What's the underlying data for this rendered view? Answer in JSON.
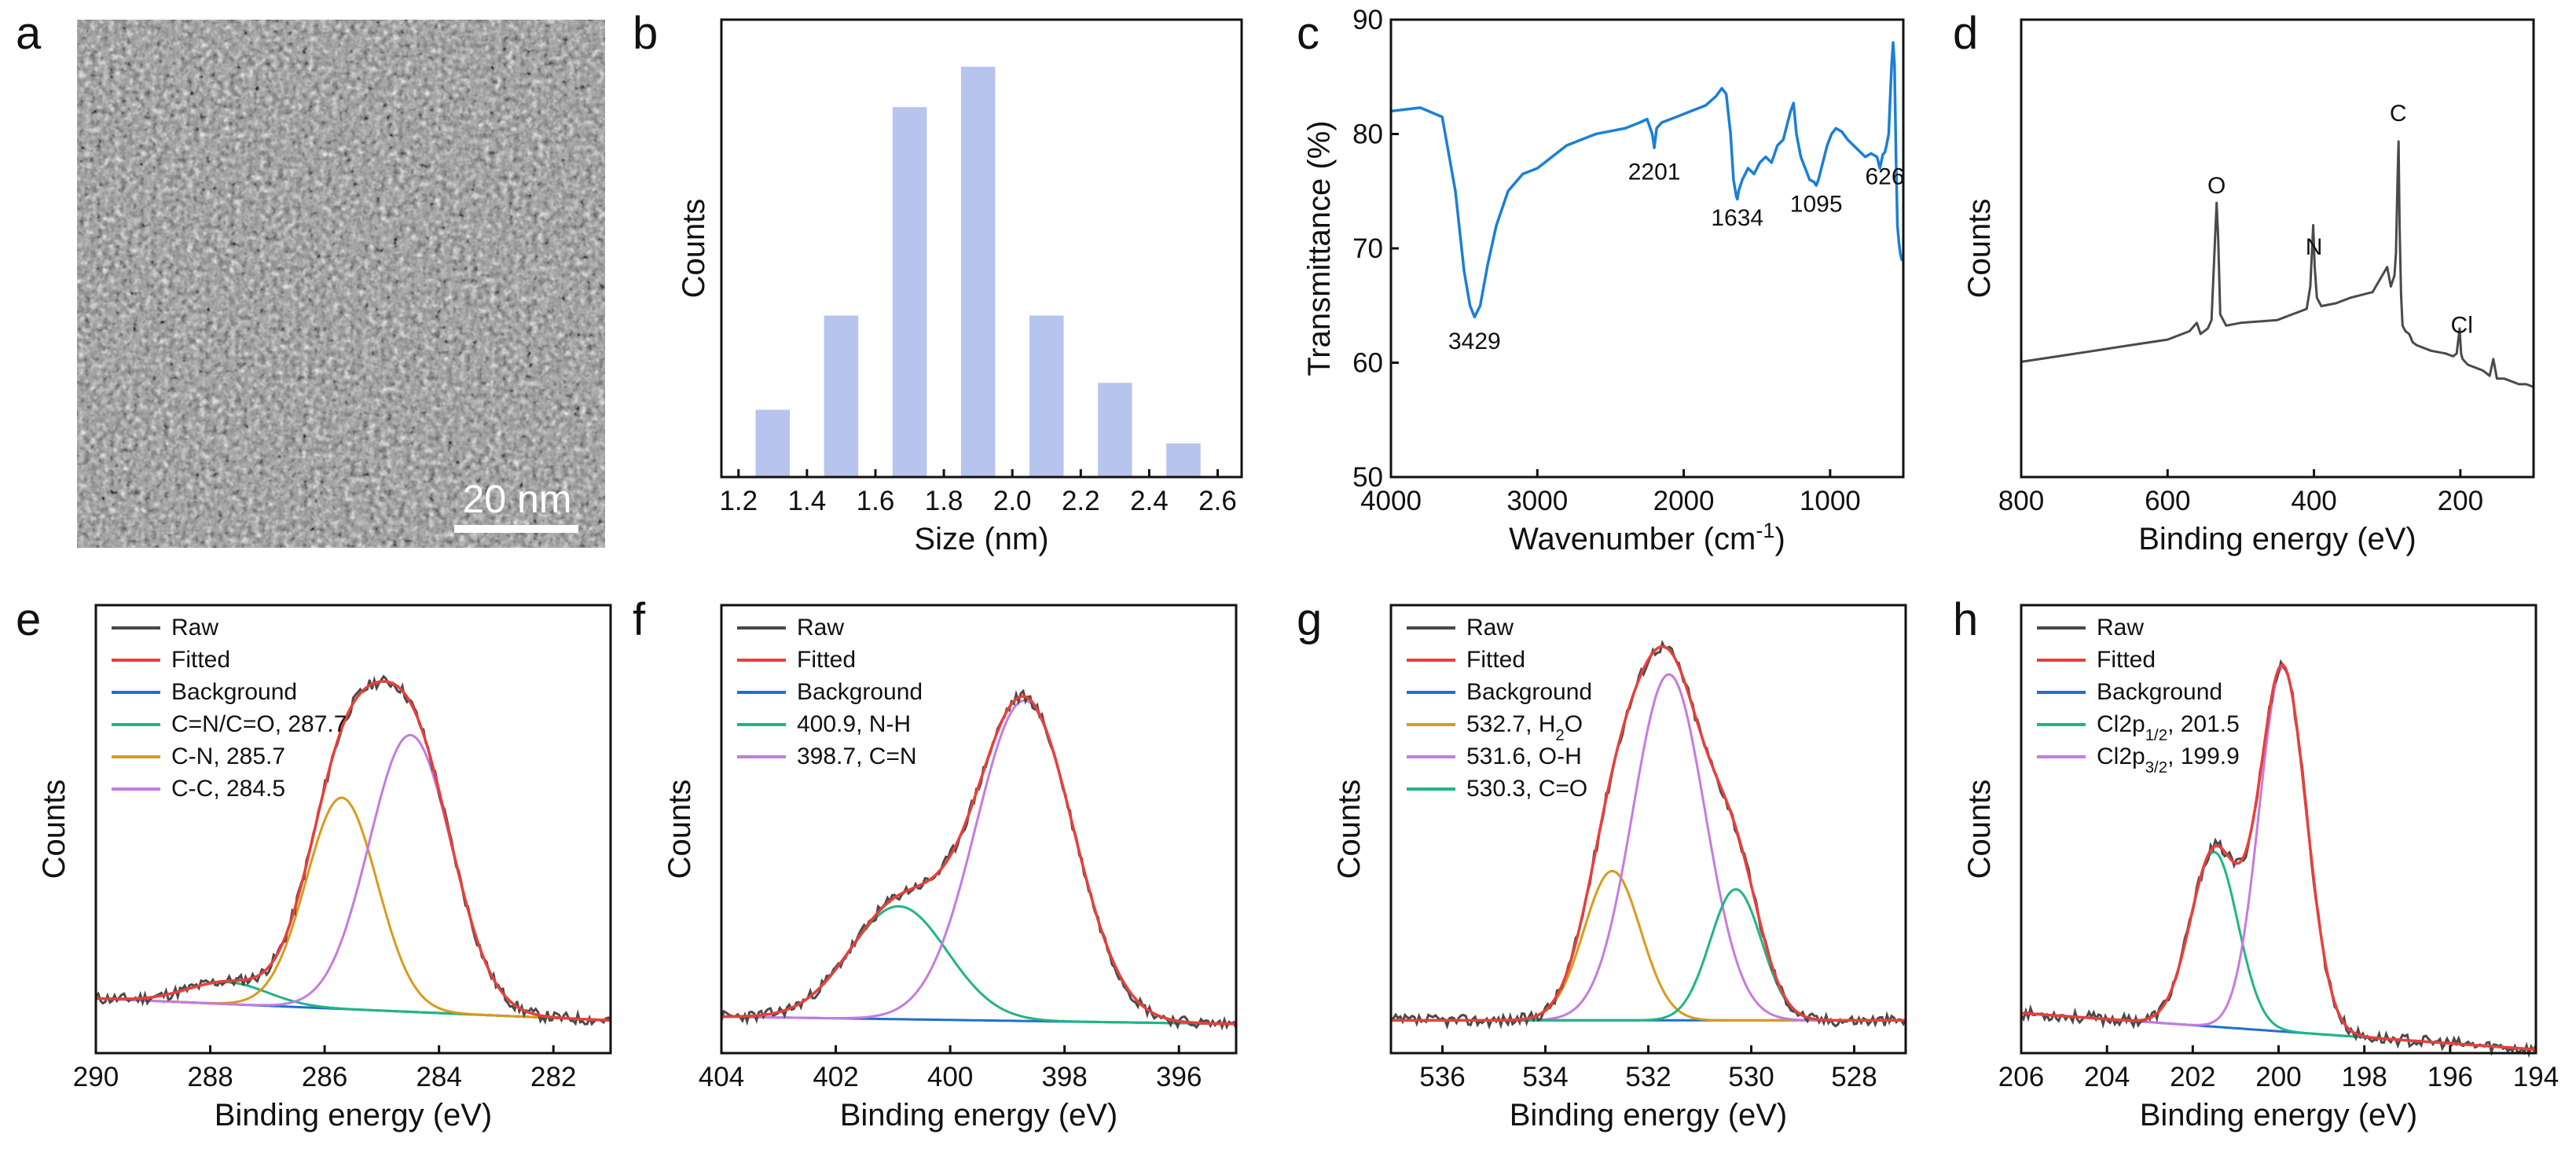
{
  "panels": {
    "a": {
      "label": "a",
      "scale_bar": "20 nm"
    },
    "b": {
      "label": "b"
    },
    "c": {
      "label": "c"
    },
    "d": {
      "label": "d"
    },
    "e": {
      "label": "e"
    },
    "f": {
      "label": "f"
    },
    "g": {
      "label": "g"
    },
    "h": {
      "label": "h"
    }
  },
  "legend_common": {
    "raw": "Raw",
    "fitted": "Fitted",
    "background": "Background"
  },
  "colors": {
    "raw": "#4a4a4a",
    "fitted": "#e8403a",
    "background": "#1f6fd1",
    "green": "#1fb584",
    "orange": "#d99a1c",
    "violet": "#c77ae0",
    "bar": "#b7c4ee",
    "ftir": "#1b7fd6",
    "survey": "#4a4a4a"
  },
  "chart_data": [
    {
      "id": "b",
      "type": "bar",
      "xlabel": "Size (nm)",
      "ylabel": "Counts",
      "xlim": [
        1.15,
        2.67
      ],
      "ylim": [
        0,
        68
      ],
      "xticks": [
        "1.2",
        "1.4",
        "1.6",
        "1.8",
        "2.0",
        "2.2",
        "2.4",
        "2.6"
      ],
      "bar_width": 0.1,
      "x": [
        1.3,
        1.5,
        1.7,
        1.9,
        2.1,
        2.3,
        2.5
      ],
      "values": [
        10,
        24,
        55,
        61,
        24,
        14,
        5
      ]
    },
    {
      "id": "c",
      "type": "line",
      "xlabel": "Wavenumber (cm",
      "xlabel_sup": "-1",
      "xlabel_end": ")",
      "ylabel": "Transmittance (%)",
      "xlim": [
        4000,
        500
      ],
      "ylim": [
        50,
        90
      ],
      "xticks": [
        "4000",
        "3000",
        "2000",
        "1000"
      ],
      "yticks": [
        "50",
        "60",
        "70",
        "80",
        "90"
      ],
      "x": [
        4000,
        3800,
        3650,
        3560,
        3500,
        3460,
        3429,
        3390,
        3340,
        3280,
        3200,
        3100,
        3000,
        2900,
        2800,
        2700,
        2600,
        2400,
        2300,
        2250,
        2215,
        2201,
        2185,
        2150,
        2050,
        1950,
        1850,
        1780,
        1740,
        1710,
        1680,
        1660,
        1640,
        1634,
        1625,
        1600,
        1560,
        1520,
        1480,
        1440,
        1400,
        1360,
        1320,
        1290,
        1270,
        1250,
        1230,
        1200,
        1170,
        1140,
        1110,
        1095,
        1080,
        1060,
        1020,
        990,
        960,
        920,
        880,
        840,
        800,
        760,
        720,
        680,
        660,
        640,
        626,
        615,
        600,
        590,
        580,
        570,
        560,
        550,
        540,
        530,
        520,
        510,
        500
      ],
      "y": [
        82,
        82.3,
        81.5,
        75,
        68,
        65,
        64,
        65,
        68.5,
        72,
        75,
        76.5,
        77,
        78,
        79,
        79.5,
        80,
        80.5,
        81,
        81.3,
        80,
        78.8,
        80.5,
        81,
        81.5,
        82,
        82.5,
        83.3,
        84,
        83.5,
        80,
        76,
        74.5,
        74.3,
        75,
        76,
        77,
        76.5,
        77.5,
        78,
        77.5,
        79,
        79.5,
        81,
        82,
        82.7,
        80,
        78,
        77,
        76,
        75.8,
        75.5,
        76,
        77,
        79,
        80,
        80.5,
        80.2,
        79.5,
        79,
        78.5,
        78,
        78.3,
        78,
        77,
        78.2,
        78.4,
        79,
        80,
        83,
        86,
        88,
        86,
        78,
        72,
        70.5,
        69.5,
        69,
        69
      ],
      "annotations": [
        "3429",
        "2201",
        "1634",
        "1095",
        "626"
      ]
    },
    {
      "id": "d",
      "type": "line",
      "xlabel": "Binding energy (eV)",
      "ylabel": "Counts",
      "xlim": [
        800,
        100
      ],
      "ylim": [
        0,
        100
      ],
      "xticks": [
        "800",
        "600",
        "400",
        "200"
      ],
      "x": [
        800,
        750,
        700,
        650,
        600,
        570,
        560,
        555,
        545,
        540,
        536,
        533,
        531,
        528,
        520,
        500,
        450,
        420,
        410,
        405,
        401,
        399,
        396,
        390,
        370,
        350,
        320,
        300,
        295,
        290,
        288,
        286,
        284.5,
        283,
        281,
        279,
        275,
        270,
        265,
        260,
        240,
        220,
        210,
        205,
        201,
        199,
        197,
        190,
        180,
        170,
        165,
        160,
        155,
        150,
        140,
        130,
        120,
        110,
        100
      ],
      "y": [
        21,
        23,
        25,
        27,
        29,
        32,
        35,
        31,
        33,
        36,
        60,
        78,
        66,
        38,
        34,
        35,
        36,
        39,
        40,
        48,
        70,
        55,
        44,
        41,
        42,
        44,
        46,
        55,
        48,
        52,
        60,
        85,
        100,
        70,
        45,
        34,
        32,
        31,
        28,
        27,
        25,
        24,
        23,
        24,
        33,
        24,
        22,
        20,
        19,
        18,
        17,
        16,
        22,
        15,
        15,
        14,
        13,
        13,
        12
      ],
      "annotations": [
        "O",
        "N",
        "C",
        "Cl"
      ]
    },
    {
      "id": "e",
      "type": "line",
      "xlabel": "Binding energy (eV)",
      "ylabel": "Counts",
      "xlim": [
        290,
        281
      ],
      "ylim": [
        -8,
        115
      ],
      "xticks": [
        "290",
        "288",
        "286",
        "284",
        "282"
      ],
      "series": [
        {
          "name": "Raw",
          "color_key": "raw"
        },
        {
          "name": "Fitted",
          "color_key": "fitted"
        },
        {
          "name": "Background",
          "color_key": "background"
        },
        {
          "name": "C=N/C=O, 287.7",
          "color_key": "green",
          "center": 287.7,
          "height": 6,
          "width": 0.7
        },
        {
          "name": "C-N, 285.7",
          "color_key": "orange",
          "center": 285.7,
          "height": 58,
          "width": 0.62
        },
        {
          "name": "C-C, 284.5",
          "color_key": "violet",
          "center": 284.5,
          "height": 76,
          "width": 0.72
        }
      ],
      "background": {
        "x": [
          290,
          281
        ],
        "y": [
          7,
          1
        ]
      }
    },
    {
      "id": "f",
      "type": "line",
      "xlabel": "Binding energy (eV)",
      "ylabel": "Counts",
      "xlim": [
        404,
        395
      ],
      "ylim": [
        -8,
        115
      ],
      "xticks": [
        "404",
        "402",
        "400",
        "398",
        "396"
      ],
      "series": [
        {
          "name": "Raw",
          "color_key": "raw"
        },
        {
          "name": "Fitted",
          "color_key": "fitted"
        },
        {
          "name": "Background",
          "color_key": "background"
        },
        {
          "name": "400.9, N-H",
          "color_key": "green",
          "center": 400.9,
          "height": 31,
          "width": 0.85
        },
        {
          "name": "398.7, C=N",
          "color_key": "violet",
          "center": 398.7,
          "height": 88,
          "width": 0.85
        }
      ],
      "background": {
        "x": [
          404,
          395
        ],
        "y": [
          2,
          0
        ]
      }
    },
    {
      "id": "g",
      "type": "line",
      "xlabel": "Binding energy (eV)",
      "ylabel": "Counts",
      "xlim": [
        537,
        527
      ],
      "ylim": [
        -8,
        115
      ],
      "xticks": [
        "536",
        "534",
        "532",
        "530",
        "528"
      ],
      "series": [
        {
          "name": "Raw",
          "color_key": "raw"
        },
        {
          "name": "Fitted",
          "color_key": "fitted"
        },
        {
          "name": "Background",
          "color_key": "background"
        },
        {
          "name": "532.7, H",
          "sub": "2",
          "name_end": "O",
          "color_key": "orange",
          "center": 532.7,
          "height": 41,
          "width": 0.55
        },
        {
          "name": "531.6, O-H",
          "color_key": "violet",
          "center": 531.6,
          "height": 95,
          "width": 0.7
        },
        {
          "name": "530.3, C=O",
          "color_key": "green",
          "center": 530.3,
          "height": 36,
          "width": 0.5
        }
      ],
      "background": {
        "x": [
          537,
          527
        ],
        "y": [
          1,
          1
        ]
      }
    },
    {
      "id": "h",
      "type": "line",
      "xlabel": "Binding energy (eV)",
      "ylabel": "Counts",
      "xlim": [
        206,
        194
      ],
      "ylim": [
        -8,
        115
      ],
      "xticks": [
        "206",
        "204",
        "202",
        "200",
        "198",
        "196",
        "194"
      ],
      "series": [
        {
          "name": "Raw",
          "color_key": "raw"
        },
        {
          "name": "Fitted",
          "color_key": "fitted"
        },
        {
          "name": "Background",
          "color_key": "background"
        },
        {
          "name": "Cl2p",
          "sub": "1/2",
          "name_end": ", 201.5",
          "color_key": "green",
          "center": 201.5,
          "height": 48,
          "width": 0.55
        },
        {
          "name": "Cl2p",
          "sub": "3/2",
          "name_end": ", 199.9",
          "color_key": "violet",
          "center": 199.9,
          "height": 100,
          "width": 0.55
        }
      ],
      "background": {
        "x": [
          206,
          194
        ],
        "y": [
          3,
          -7
        ]
      }
    }
  ]
}
